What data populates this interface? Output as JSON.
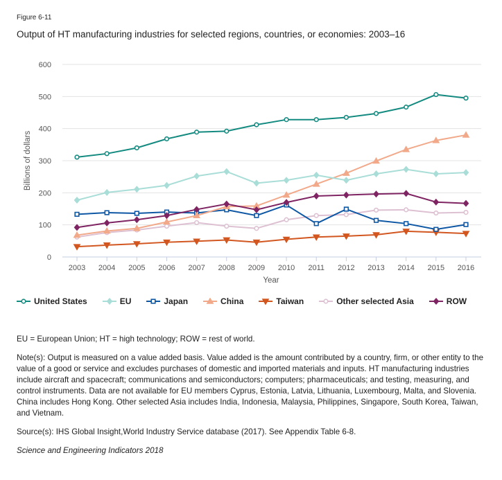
{
  "figure_label": "Figure 6-11",
  "title": "Output of HT manufacturing industries for selected regions, countries, or economies: 2003–16",
  "chart_data": {
    "type": "line",
    "xlabel": "Year",
    "ylabel": "Billions of dollars",
    "ylim": [
      0,
      600
    ],
    "yticks": [
      "0",
      "100",
      "200",
      "300",
      "400",
      "500",
      "600"
    ],
    "x": [
      "2003",
      "2004",
      "2005",
      "2006",
      "2007",
      "2008",
      "2009",
      "2010",
      "2011",
      "2012",
      "2013",
      "2014",
      "2015",
      "2016"
    ],
    "grid": true,
    "legend": "bottom",
    "series": [
      {
        "name": "United States",
        "color": "#138a80",
        "marker": "circle",
        "values": [
          311,
          322,
          340,
          368,
          389,
          392,
          412,
          428,
          428,
          435,
          447,
          467,
          506,
          495
        ]
      },
      {
        "name": "EU",
        "color": "#a9ddd7",
        "marker": "diamond",
        "values": [
          177,
          201,
          211,
          223,
          252,
          266,
          230,
          239,
          255,
          239,
          259,
          273,
          259,
          263
        ]
      },
      {
        "name": "Japan",
        "color": "#0d57a4",
        "marker": "square",
        "values": [
          133,
          138,
          136,
          140,
          137,
          147,
          129,
          162,
          104,
          149,
          114,
          104,
          86,
          101
        ]
      },
      {
        "name": "China",
        "color": "#f1a98a",
        "marker": "triangle-up",
        "values": [
          68,
          81,
          89,
          109,
          129,
          157,
          159,
          193,
          227,
          261,
          299,
          335,
          363,
          380
        ]
      },
      {
        "name": "Taiwan",
        "color": "#d2561f",
        "marker": "triangle-down",
        "values": [
          32,
          37,
          41,
          46,
          49,
          53,
          46,
          55,
          62,
          65,
          69,
          80,
          77,
          73
        ]
      },
      {
        "name": "Other selected Asia",
        "color": "#ddc1d2",
        "marker": "circle",
        "values": [
          62,
          76,
          84,
          96,
          107,
          96,
          89,
          116,
          129,
          132,
          146,
          147,
          137,
          139
        ]
      },
      {
        "name": "ROW",
        "color": "#7f2462",
        "marker": "diamond",
        "values": [
          92,
          106,
          116,
          129,
          148,
          165,
          147,
          170,
          190,
          193,
          196,
          198,
          171,
          167
        ]
      }
    ]
  },
  "notes": {
    "abbrev": "EU = European Union; HT = high technology; ROW = rest of world.",
    "note": "Note(s): Output is measured on a value added basis. Value added is the amount contributed by a country, firm, or other entity to the value of a good or service and excludes purchases of domestic and imported materials and inputs. HT manufacturing industries include aircraft and spacecraft; communications and semiconductors; computers; pharmaceuticals; and testing, measuring, and control instruments. Data are not available for EU members Cyprus, Estonia, Latvia, Lithuania, Luxembourg, Malta, and Slovenia. China includes Hong Kong. Other selected Asia includes India, Indonesia, Malaysia, Philippines, Singapore, South Korea, Taiwan, and Vietnam.",
    "source": "Source(s): IHS Global Insight,World Industry Service database (2017). See Appendix Table 6-8.",
    "publication": "Science and Engineering Indicators 2018"
  }
}
